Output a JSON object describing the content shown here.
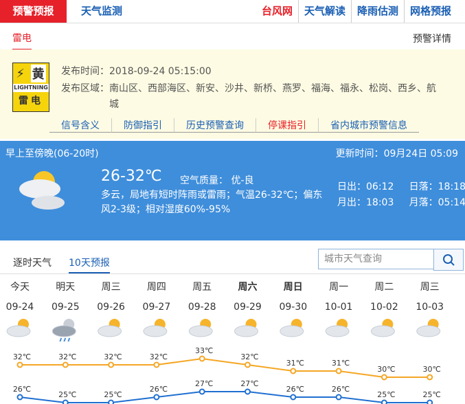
{
  "top_nav": {
    "active": "预警预报",
    "tabs": [
      "天气监测"
    ],
    "links": [
      "台风网",
      "天气解读",
      "降雨估测",
      "网格预报"
    ]
  },
  "warning": {
    "type": "雷电",
    "detail_link": "预警详情",
    "icon": {
      "level": "黄",
      "label": "LIGHTNING",
      "name": "雷电"
    },
    "publish_time_label": "发布时间：",
    "publish_time": "2018-09-24 05:15:00",
    "area_label": "发布区域：",
    "area": "南山区、西部海区、新安、沙井、新桥、燕罗、福海、福永、松岗、西乡、航城",
    "links": [
      "信号含义",
      "防御指引",
      "历史预警查询",
      "停课指引",
      "省内城市预警信息"
    ]
  },
  "current": {
    "period": "早上至傍晚(06-20时)",
    "update_label": "更新时间：",
    "update_time": "09月24日 05:09",
    "temperature": "26-32℃",
    "air_quality_label": "空气质量：",
    "air_quality": "优-良",
    "description": "多云，局地有短时阵雨或雷雨；气温26-32℃；偏东风2-3级；相对湿度60%-95%",
    "sunrise_label": "日出：",
    "sunrise": "06:12",
    "sunset_label": "日落：",
    "sunset": "18:18",
    "moonrise_label": "月出：",
    "moonrise": "18:03",
    "moonset_label": "月落：",
    "moonset": "05:14"
  },
  "forecast_tabs": [
    "逐时天气",
    "10天预报"
  ],
  "search_placeholder": "城市天气查询",
  "forecast": {
    "days": [
      "今天",
      "明天",
      "周三",
      "周四",
      "周五",
      "周六",
      "周日",
      "周一",
      "周二",
      "周三"
    ],
    "dates": [
      "09-24",
      "09-25",
      "09-26",
      "09-27",
      "09-28",
      "09-29",
      "09-30",
      "10-01",
      "10-02",
      "10-03"
    ],
    "high": {
      "values": [
        32,
        32,
        32,
        32,
        33,
        32,
        31,
        31,
        30,
        30
      ],
      "value_labels": [
        "32℃",
        "32℃",
        "32℃",
        "32℃",
        "33℃",
        "32℃",
        "31℃",
        "31℃",
        "30℃",
        "30℃"
      ]
    },
    "low": {
      "values": [
        26,
        25,
        25,
        26,
        27,
        27,
        26,
        26,
        25,
        25
      ],
      "value_labels": [
        "26℃",
        "25℃",
        "25℃",
        "26℃",
        "27℃",
        "27℃",
        "26℃",
        "26℃",
        "25℃",
        "25℃"
      ]
    }
  }
}
